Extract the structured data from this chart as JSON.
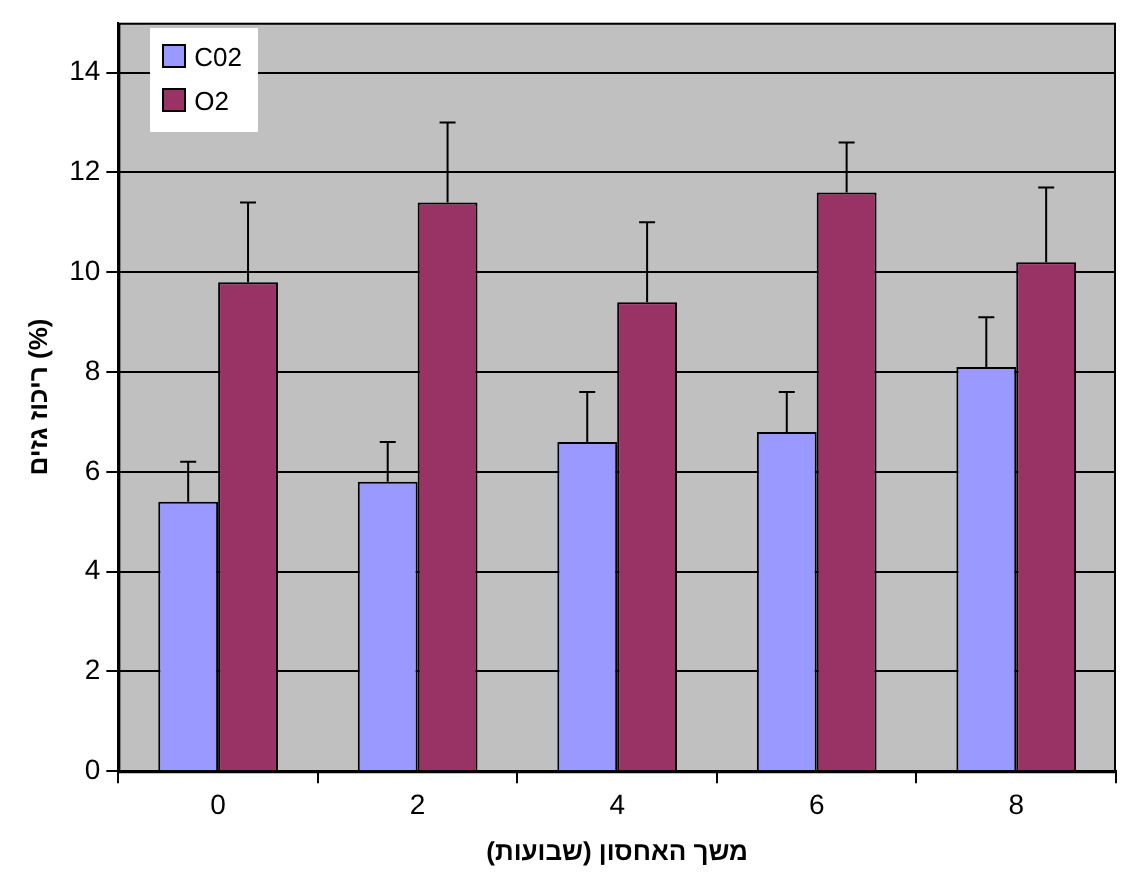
{
  "chart_data": {
    "type": "bar",
    "xlabel": "משך האחסון (שבועות)",
    "ylabel": "ריכוז גזים (%)",
    "categories": [
      "0",
      "2",
      "4",
      "6",
      "8"
    ],
    "series": [
      {
        "name": "C02",
        "color": "#9999ff",
        "values": [
          5.4,
          5.8,
          6.6,
          6.8,
          8.1
        ],
        "errors": [
          [
            5.4,
            6.2
          ],
          [
            5.8,
            6.6
          ],
          [
            6.6,
            7.6
          ],
          [
            6.8,
            7.6
          ],
          [
            8.1,
            9.1
          ]
        ]
      },
      {
        "name": "O2",
        "color": "#993366",
        "values": [
          9.8,
          11.4,
          9.4,
          11.6,
          10.2
        ],
        "errors": [
          [
            9.8,
            11.4
          ],
          [
            11.4,
            13
          ],
          [
            9.4,
            11
          ],
          [
            11.6,
            12.6
          ],
          [
            10.2,
            11.7
          ]
        ]
      }
    ],
    "ylim": [
      0,
      15
    ],
    "yticks": [
      0,
      2,
      4,
      6,
      8,
      10,
      12,
      14
    ],
    "grid": "y",
    "legend": "top left"
  }
}
